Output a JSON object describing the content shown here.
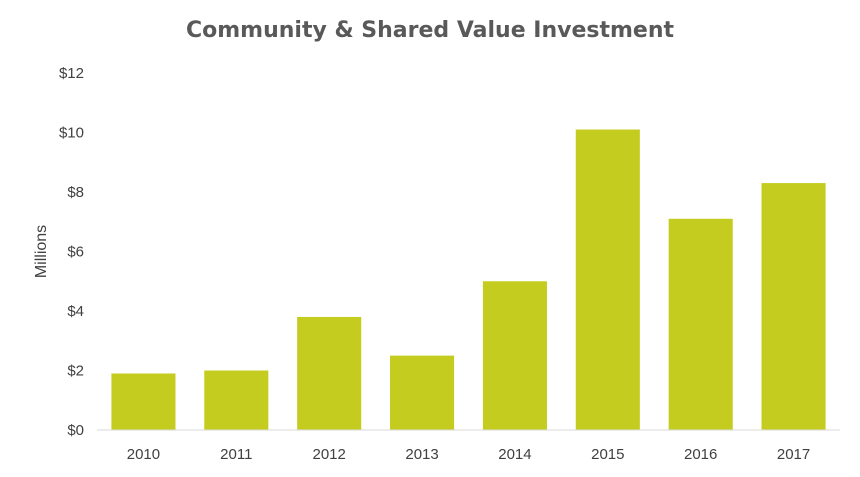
{
  "chart_data": {
    "type": "bar",
    "title": "Community & Shared Value Investment",
    "xlabel": "",
    "ylabel": "Millions",
    "categories": [
      "2010",
      "2011",
      "2012",
      "2013",
      "2014",
      "2015",
      "2016",
      "2017"
    ],
    "values": [
      1.9,
      2.0,
      3.8,
      2.5,
      5.0,
      10.1,
      7.1,
      8.3
    ],
    "ylim": [
      0,
      12
    ],
    "yticks": [
      0,
      2,
      4,
      6,
      8,
      10,
      12
    ],
    "ytick_labels": [
      "$0",
      "$2",
      "$4",
      "$6",
      "$8",
      "$10",
      "$12"
    ],
    "bar_color": "#c4cd1f",
    "axis_color": "#d9d9d9",
    "grid": false,
    "legend": "none"
  }
}
